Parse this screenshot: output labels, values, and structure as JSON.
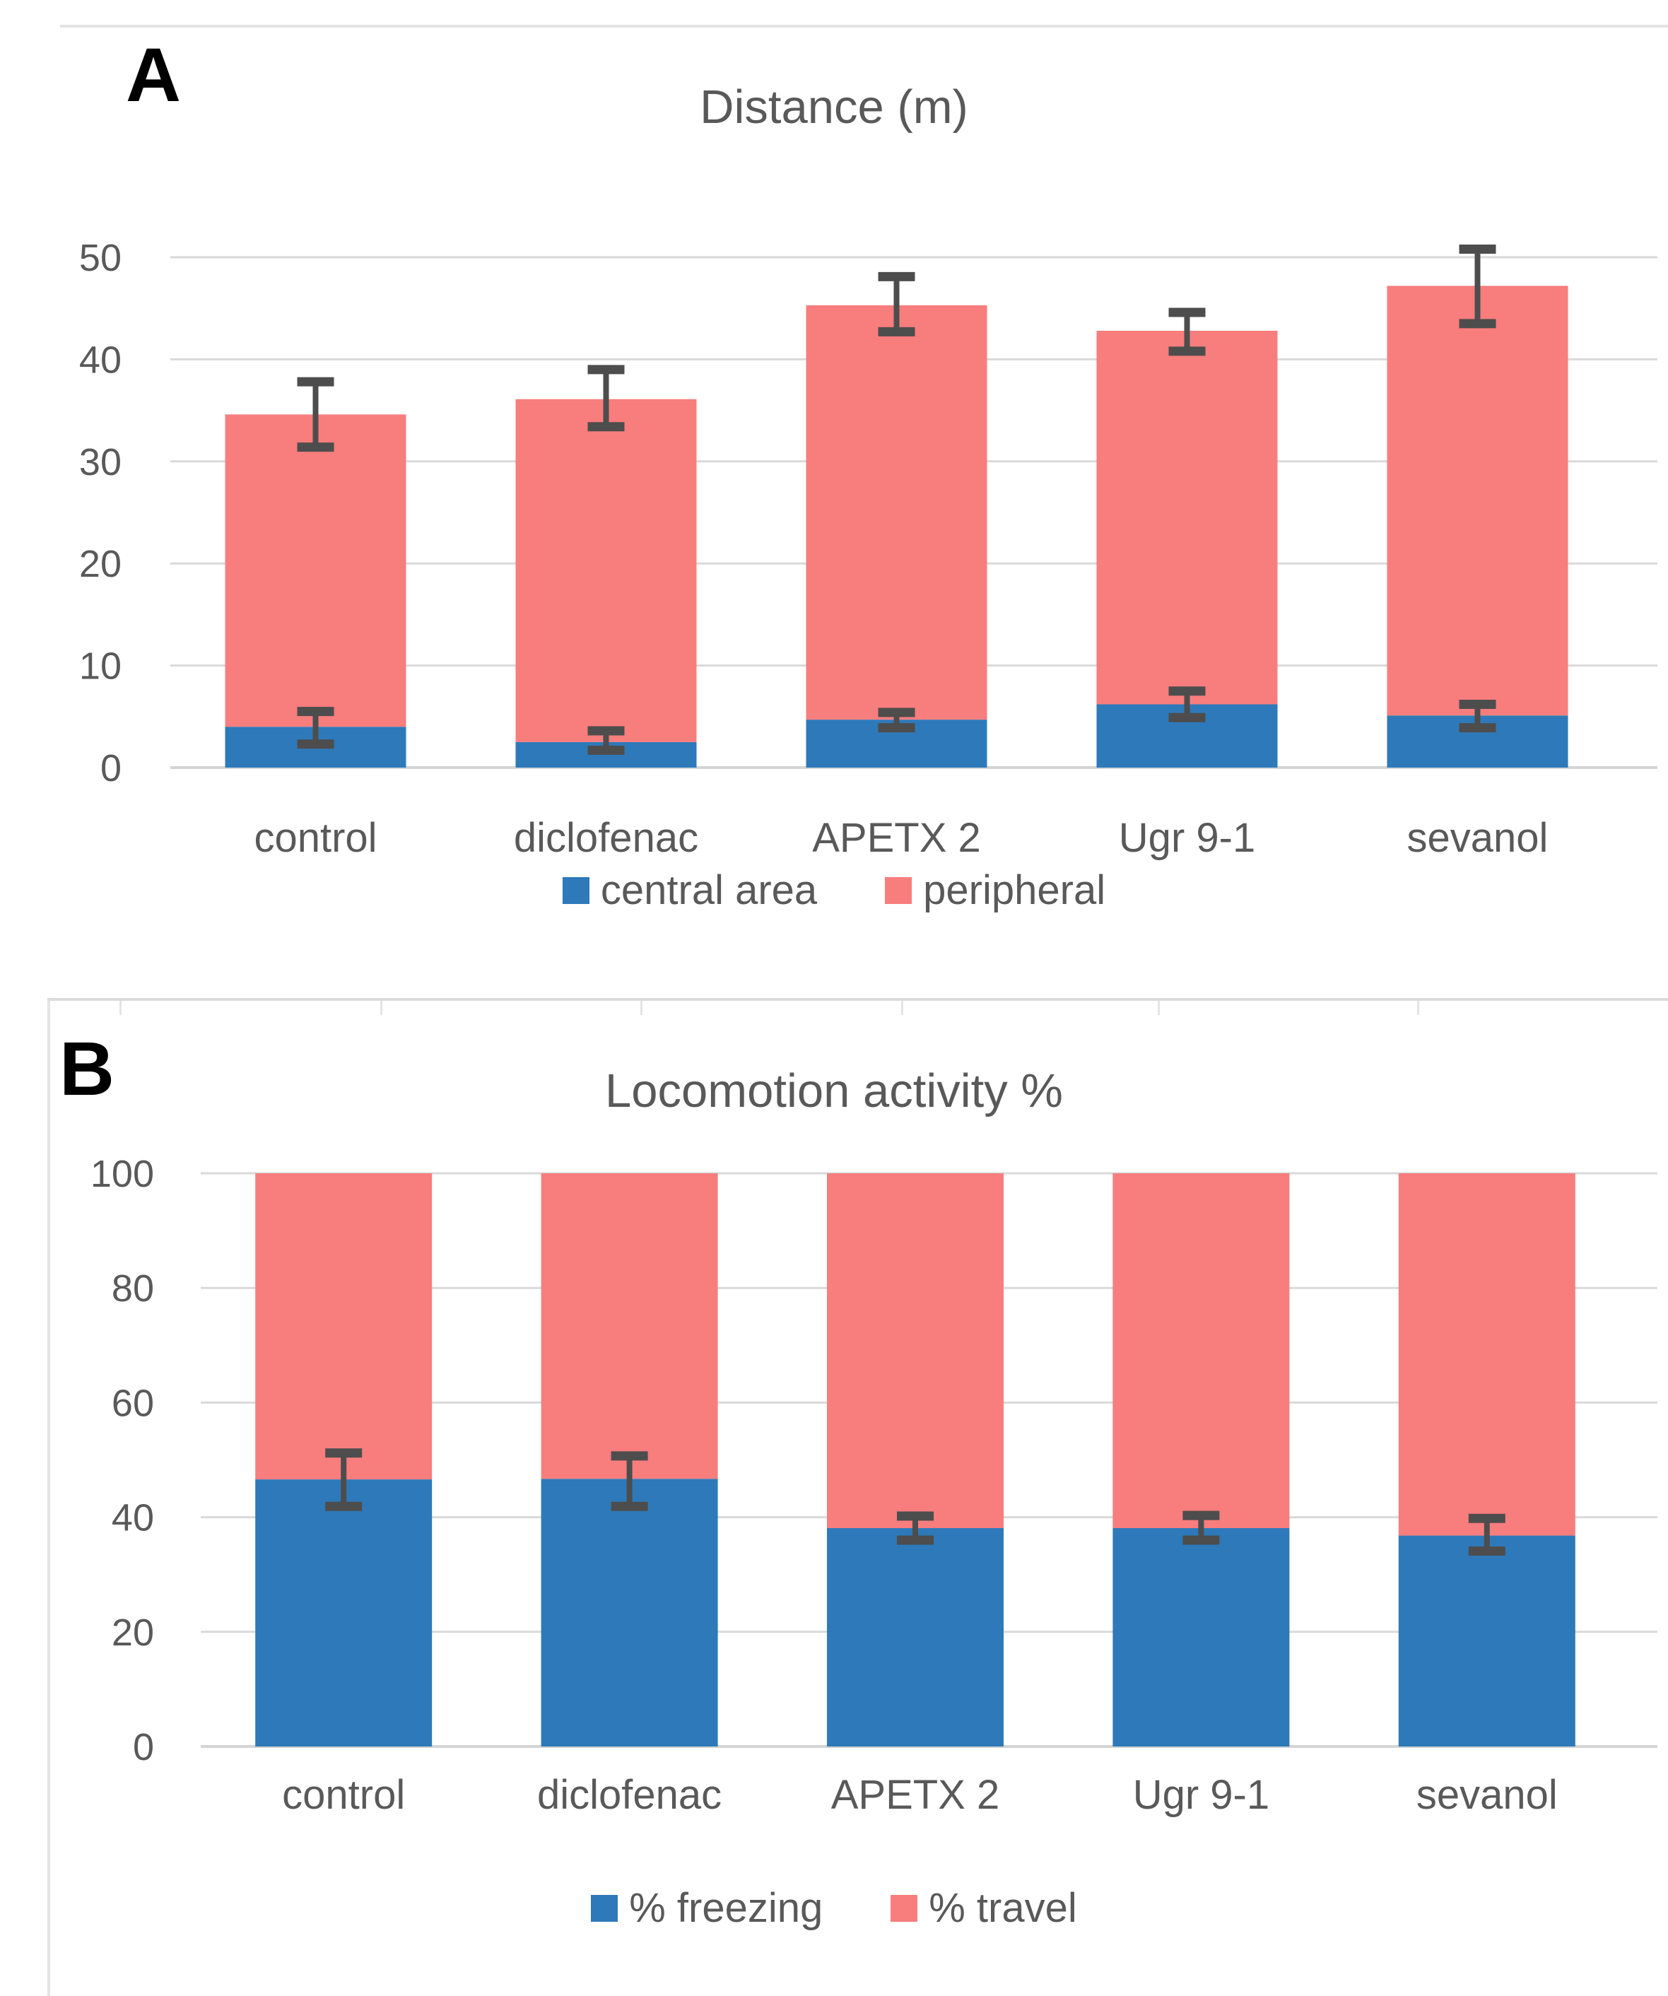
{
  "figure": {
    "panel_a_label": "A",
    "panel_b_label": "B",
    "panel_a_title": "Distance (m)",
    "panel_b_title": "Locomotion activity %"
  },
  "colors": {
    "blue": "#2e79b9",
    "pink": "#f87d7d",
    "error_bar": "#4d4d4d",
    "gridline": "#d9d9d9",
    "axis_line": "#d4d4d4",
    "axis_text": "#595959",
    "title_text": "#595959",
    "panel_label": "#000000"
  },
  "chart_data": [
    {
      "id": "A",
      "type": "bar",
      "subtype": "stacked-bar-with-error-bars",
      "title": "Distance (m)",
      "categories": [
        "control",
        "diclofenac",
        "APETX 2",
        "Ugr 9-1",
        "sevanol"
      ],
      "ylim": [
        0,
        50
      ],
      "yticks": [
        0,
        10,
        20,
        30,
        40,
        50
      ],
      "grid": true,
      "legend_position": "bottom",
      "legend": [
        "central area",
        "peripheral"
      ],
      "series": [
        {
          "name": "central area",
          "color_key": "blue",
          "values": [
            4.0,
            2.5,
            4.7,
            6.2,
            5.1
          ],
          "err_lo": [
            2.3,
            1.7,
            3.9,
            4.9,
            3.9
          ],
          "err_hi": [
            5.5,
            3.6,
            5.4,
            7.5,
            6.2
          ]
        },
        {
          "name": "peripheral",
          "color_key": "pink",
          "values": [
            30.6,
            33.6,
            40.6,
            36.6,
            42.1
          ],
          "err_lo": [
            31.4,
            33.4,
            42.7,
            40.8,
            43.5
          ],
          "err_hi": [
            37.8,
            39.0,
            48.1,
            44.6,
            50.8
          ]
        }
      ],
      "stack_totals": [
        34.6,
        36.1,
        45.3,
        42.8,
        47.2
      ],
      "error_note": "err_lo/err_hi are absolute y-values of whisker ends located at the cumulative top of each series"
    },
    {
      "id": "B",
      "type": "bar",
      "subtype": "stacked-bar-with-error-bars",
      "title": "Locomotion activity %",
      "categories": [
        "control",
        "diclofenac",
        "APETX 2",
        "Ugr 9-1",
        "sevanol"
      ],
      "ylim": [
        0,
        100
      ],
      "yticks": [
        0,
        20,
        40,
        60,
        80,
        100
      ],
      "grid": true,
      "legend_position": "bottom",
      "legend": [
        "% freezing",
        "% travel"
      ],
      "series": [
        {
          "name": "% freezing",
          "color_key": "blue",
          "values": [
            46.6,
            46.7,
            38.1,
            38.1,
            36.8
          ],
          "err_lo": [
            41.9,
            41.9,
            36.0,
            36.0,
            34.1
          ],
          "err_hi": [
            51.2,
            50.7,
            40.2,
            40.3,
            39.8
          ]
        },
        {
          "name": "% travel",
          "color_key": "pink",
          "values": [
            53.4,
            53.3,
            61.9,
            61.9,
            63.2
          ],
          "err_lo": null,
          "err_hi": null
        }
      ],
      "stack_totals": [
        100,
        100,
        100,
        100,
        100
      ],
      "error_note": "err_lo/err_hi are absolute y-values of whisker ends located at the cumulative top of each series"
    }
  ]
}
